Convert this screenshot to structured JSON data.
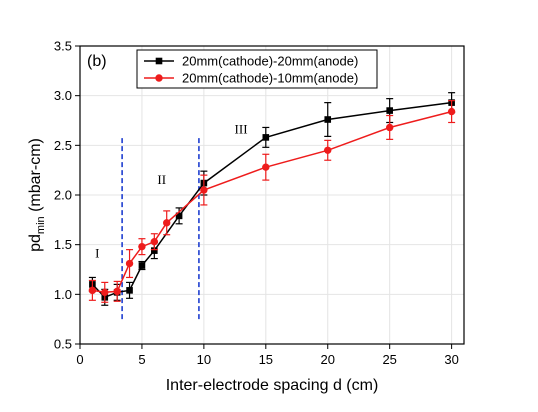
{
  "chart_data": {
    "type": "line",
    "panel_label": "(b)",
    "xlabel": "Inter-electrode spacing d (cm)",
    "ylabel_main": "pd",
    "ylabel_sub": "min",
    "ylabel_unit": " (mbar-cm)",
    "xlim": [
      0,
      31
    ],
    "ylim": [
      0.5,
      3.5
    ],
    "x_ticks": [
      0,
      5,
      10,
      15,
      20,
      25,
      30
    ],
    "y_ticks": [
      0.5,
      1.0,
      1.5,
      2.0,
      2.5,
      3.0,
      3.5
    ],
    "x_tick_labels": [
      "0",
      "5",
      "10",
      "15",
      "20",
      "25",
      "30"
    ],
    "y_tick_labels": [
      "0.5",
      "1.0",
      "1.5",
      "2.0",
      "2.5",
      "3.0",
      "3.5"
    ],
    "grid": true,
    "legend_position": "top-left",
    "series": [
      {
        "name": "20mm(cathode)-20mm(anode)",
        "color": "#000000",
        "marker": "square",
        "x": [
          1,
          2,
          3,
          4,
          5,
          6,
          8,
          10,
          15,
          20,
          25,
          30
        ],
        "y": [
          1.1,
          0.97,
          1.02,
          1.04,
          1.29,
          1.44,
          1.79,
          2.12,
          2.58,
          2.76,
          2.85,
          2.93
        ],
        "err": [
          0.07,
          0.08,
          0.08,
          0.08,
          0.04,
          0.08,
          0.08,
          0.12,
          0.1,
          0.17,
          0.12,
          0.1
        ]
      },
      {
        "name": "20mm(cathode)-10mm(anode)",
        "color": "#ee1c1c",
        "marker": "circle",
        "x": [
          1,
          2,
          3,
          4,
          5,
          6,
          7,
          10,
          15,
          20,
          25,
          30
        ],
        "y": [
          1.04,
          1.02,
          1.03,
          1.31,
          1.48,
          1.53,
          1.72,
          2.05,
          2.28,
          2.45,
          2.68,
          2.84
        ],
        "err": [
          0.1,
          0.1,
          0.1,
          0.14,
          0.08,
          0.08,
          0.12,
          0.15,
          0.13,
          0.1,
          0.12,
          0.11
        ]
      }
    ],
    "dividers": [
      {
        "x": 3.4,
        "y_from": 0.75,
        "y_to": 2.6,
        "color": "#1f3fd0"
      },
      {
        "x": 9.6,
        "y_from": 0.75,
        "y_to": 2.6,
        "color": "#1f3fd0"
      }
    ],
    "region_labels": [
      {
        "text": "I",
        "x": 1.4,
        "y": 1.37
      },
      {
        "text": "II",
        "x": 6.6,
        "y": 2.11
      },
      {
        "text": "III",
        "x": 13.0,
        "y": 2.62
      }
    ]
  }
}
